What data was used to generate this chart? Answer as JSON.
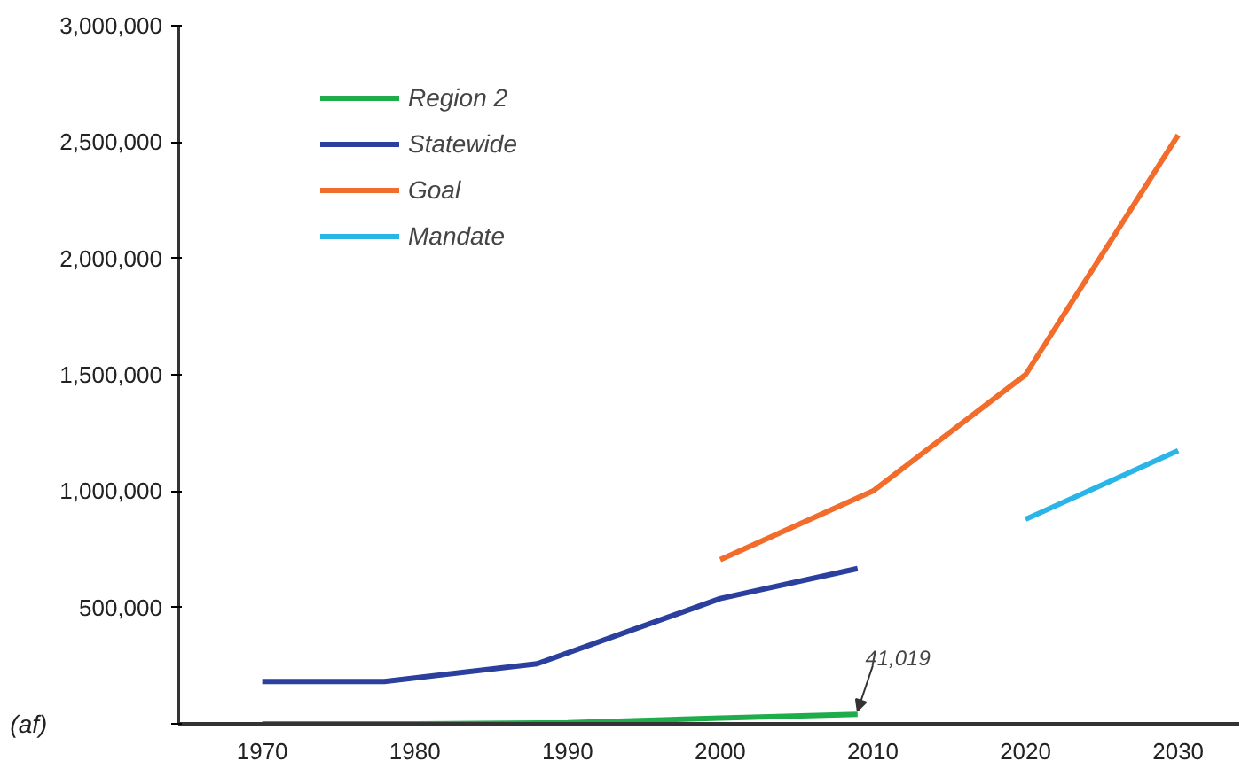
{
  "chart_data": {
    "type": "line",
    "ylabel": "(af)",
    "xlim": [
      1964.5,
      2034
    ],
    "ylim": [
      0,
      3000000
    ],
    "xticks": [
      1970,
      1980,
      1990,
      2000,
      2010,
      2020,
      2030
    ],
    "yticks": [
      {
        "value": 0,
        "label": null
      },
      {
        "value": 500000,
        "label": "500,000"
      },
      {
        "value": 1000000,
        "label": "1,000,000"
      },
      {
        "value": 1500000,
        "label": "1,500,000"
      },
      {
        "value": 2000000,
        "label": "2,000,000"
      },
      {
        "value": 2500000,
        "label": "2,500,000"
      },
      {
        "value": 3000000,
        "label": "3,000,000"
      }
    ],
    "series": [
      {
        "name": "Region 2",
        "color": "#1fad4b",
        "x": [
          1970,
          1980,
          1990,
          2000,
          2009
        ],
        "values": [
          0,
          0,
          5000,
          25000,
          41019
        ]
      },
      {
        "name": "Statewide",
        "color": "#2b3f9e",
        "x": [
          1970,
          1978,
          1988,
          2000,
          2009
        ],
        "values": [
          182000,
          182000,
          258000,
          538000,
          667000
        ]
      },
      {
        "name": "Goal",
        "color": "#f26d2b",
        "x": [
          2000,
          2010,
          2020,
          2030
        ],
        "values": [
          705000,
          1000000,
          1500000,
          2530000
        ]
      },
      {
        "name": "Mandate",
        "color": "#29b5e8",
        "x": [
          2020,
          2030
        ],
        "values": [
          879000,
          1174000
        ]
      }
    ],
    "annotations": [
      {
        "text": "41,019",
        "x": 2009,
        "y": 41019
      }
    ],
    "legend": "top left",
    "grid": false,
    "marker": "none",
    "line_style": "solid"
  }
}
